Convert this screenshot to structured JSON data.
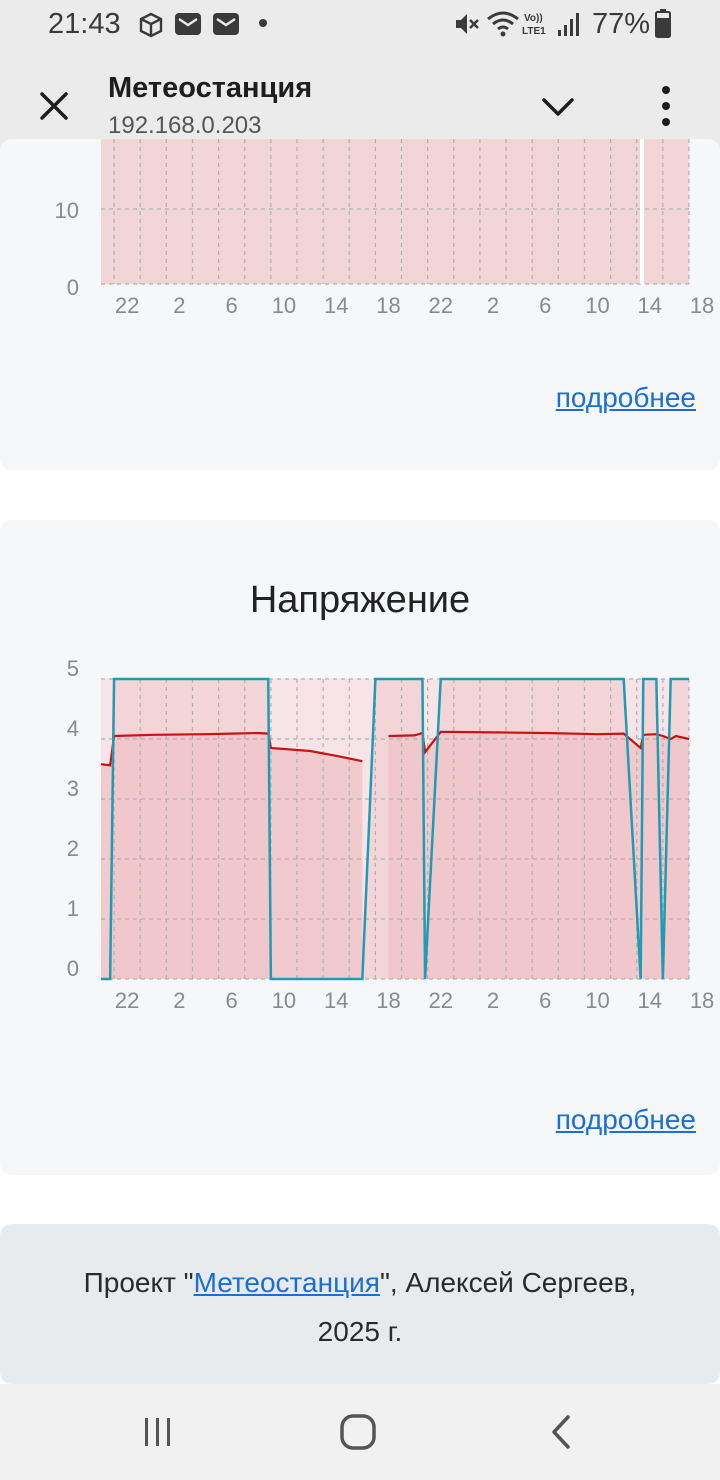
{
  "status_bar": {
    "time": "21:43",
    "battery_percent": "77%",
    "icons": [
      "package-icon",
      "mail-icon",
      "mail-icon",
      "dot-icon",
      "mute-icon",
      "wifi-icon",
      "volte-icon",
      "signal-icon",
      "battery-icon"
    ]
  },
  "appbar": {
    "title": "Метеостанция",
    "subtitle": "192.168.0.203"
  },
  "top_chart": {
    "more_label": "подробнее"
  },
  "voltage_chart": {
    "heading": "Напряжение",
    "more_label": "подробнее"
  },
  "footer": {
    "prefix": "Проект \"",
    "link_text": "Метеостанция",
    "suffix": "\", Алексей Сергеев, 2025 г."
  },
  "colors": {
    "line": "#cc1111",
    "step": "#1f9bb5",
    "fill": "#f2c5c8",
    "link": "#1a6fd6"
  },
  "chart_data": [
    {
      "type": "area",
      "title": "",
      "x_tick_labels": [
        "22",
        "2",
        "6",
        "10",
        "14",
        "18",
        "22",
        "2",
        "6",
        "10",
        "14",
        "18"
      ],
      "y_tick_labels": [
        "0",
        "10"
      ],
      "ylim": [
        0,
        20
      ],
      "grid": true,
      "note_visible": "partially scrolled out of view; values fill full height"
    },
    {
      "type": "line",
      "title": "Напряжение",
      "x_tick_labels": [
        "22",
        "2",
        "6",
        "10",
        "14",
        "18",
        "22",
        "2",
        "6",
        "10",
        "14",
        "18"
      ],
      "y_tick_labels": [
        "0",
        "1",
        "2",
        "3",
        "4",
        "5"
      ],
      "ylim": [
        0,
        5
      ],
      "grid": true,
      "x_hours": [
        20,
        20.7,
        21,
        24,
        28,
        30,
        32,
        32.8,
        33,
        36,
        38,
        40,
        41,
        42,
        44,
        44.6,
        44.8,
        46,
        50,
        54,
        58,
        60,
        61.3,
        61.5,
        62.5,
        63,
        63.6,
        64,
        65
      ],
      "series": [
        {
          "values": [
            3.58,
            3.56,
            4.05,
            4.07,
            4.08,
            4.09,
            4.1,
            4.09,
            3.85,
            3.8,
            3.72,
            3.63,
            null,
            4.05,
            4.06,
            4.1,
            3.78,
            4.12,
            4.11,
            4.1,
            4.08,
            4.09,
            3.85,
            4.07,
            4.08,
            4.05,
            4.0,
            4.05,
            4.0
          ]
        },
        {
          "values": [
            0,
            0,
            5,
            5,
            5,
            5,
            5,
            5,
            0,
            0,
            0,
            0,
            5,
            5,
            5,
            5,
            0,
            5,
            5,
            5,
            5,
            5,
            0,
            5,
            5,
            0,
            5,
            5,
            5
          ]
        }
      ]
    }
  ]
}
